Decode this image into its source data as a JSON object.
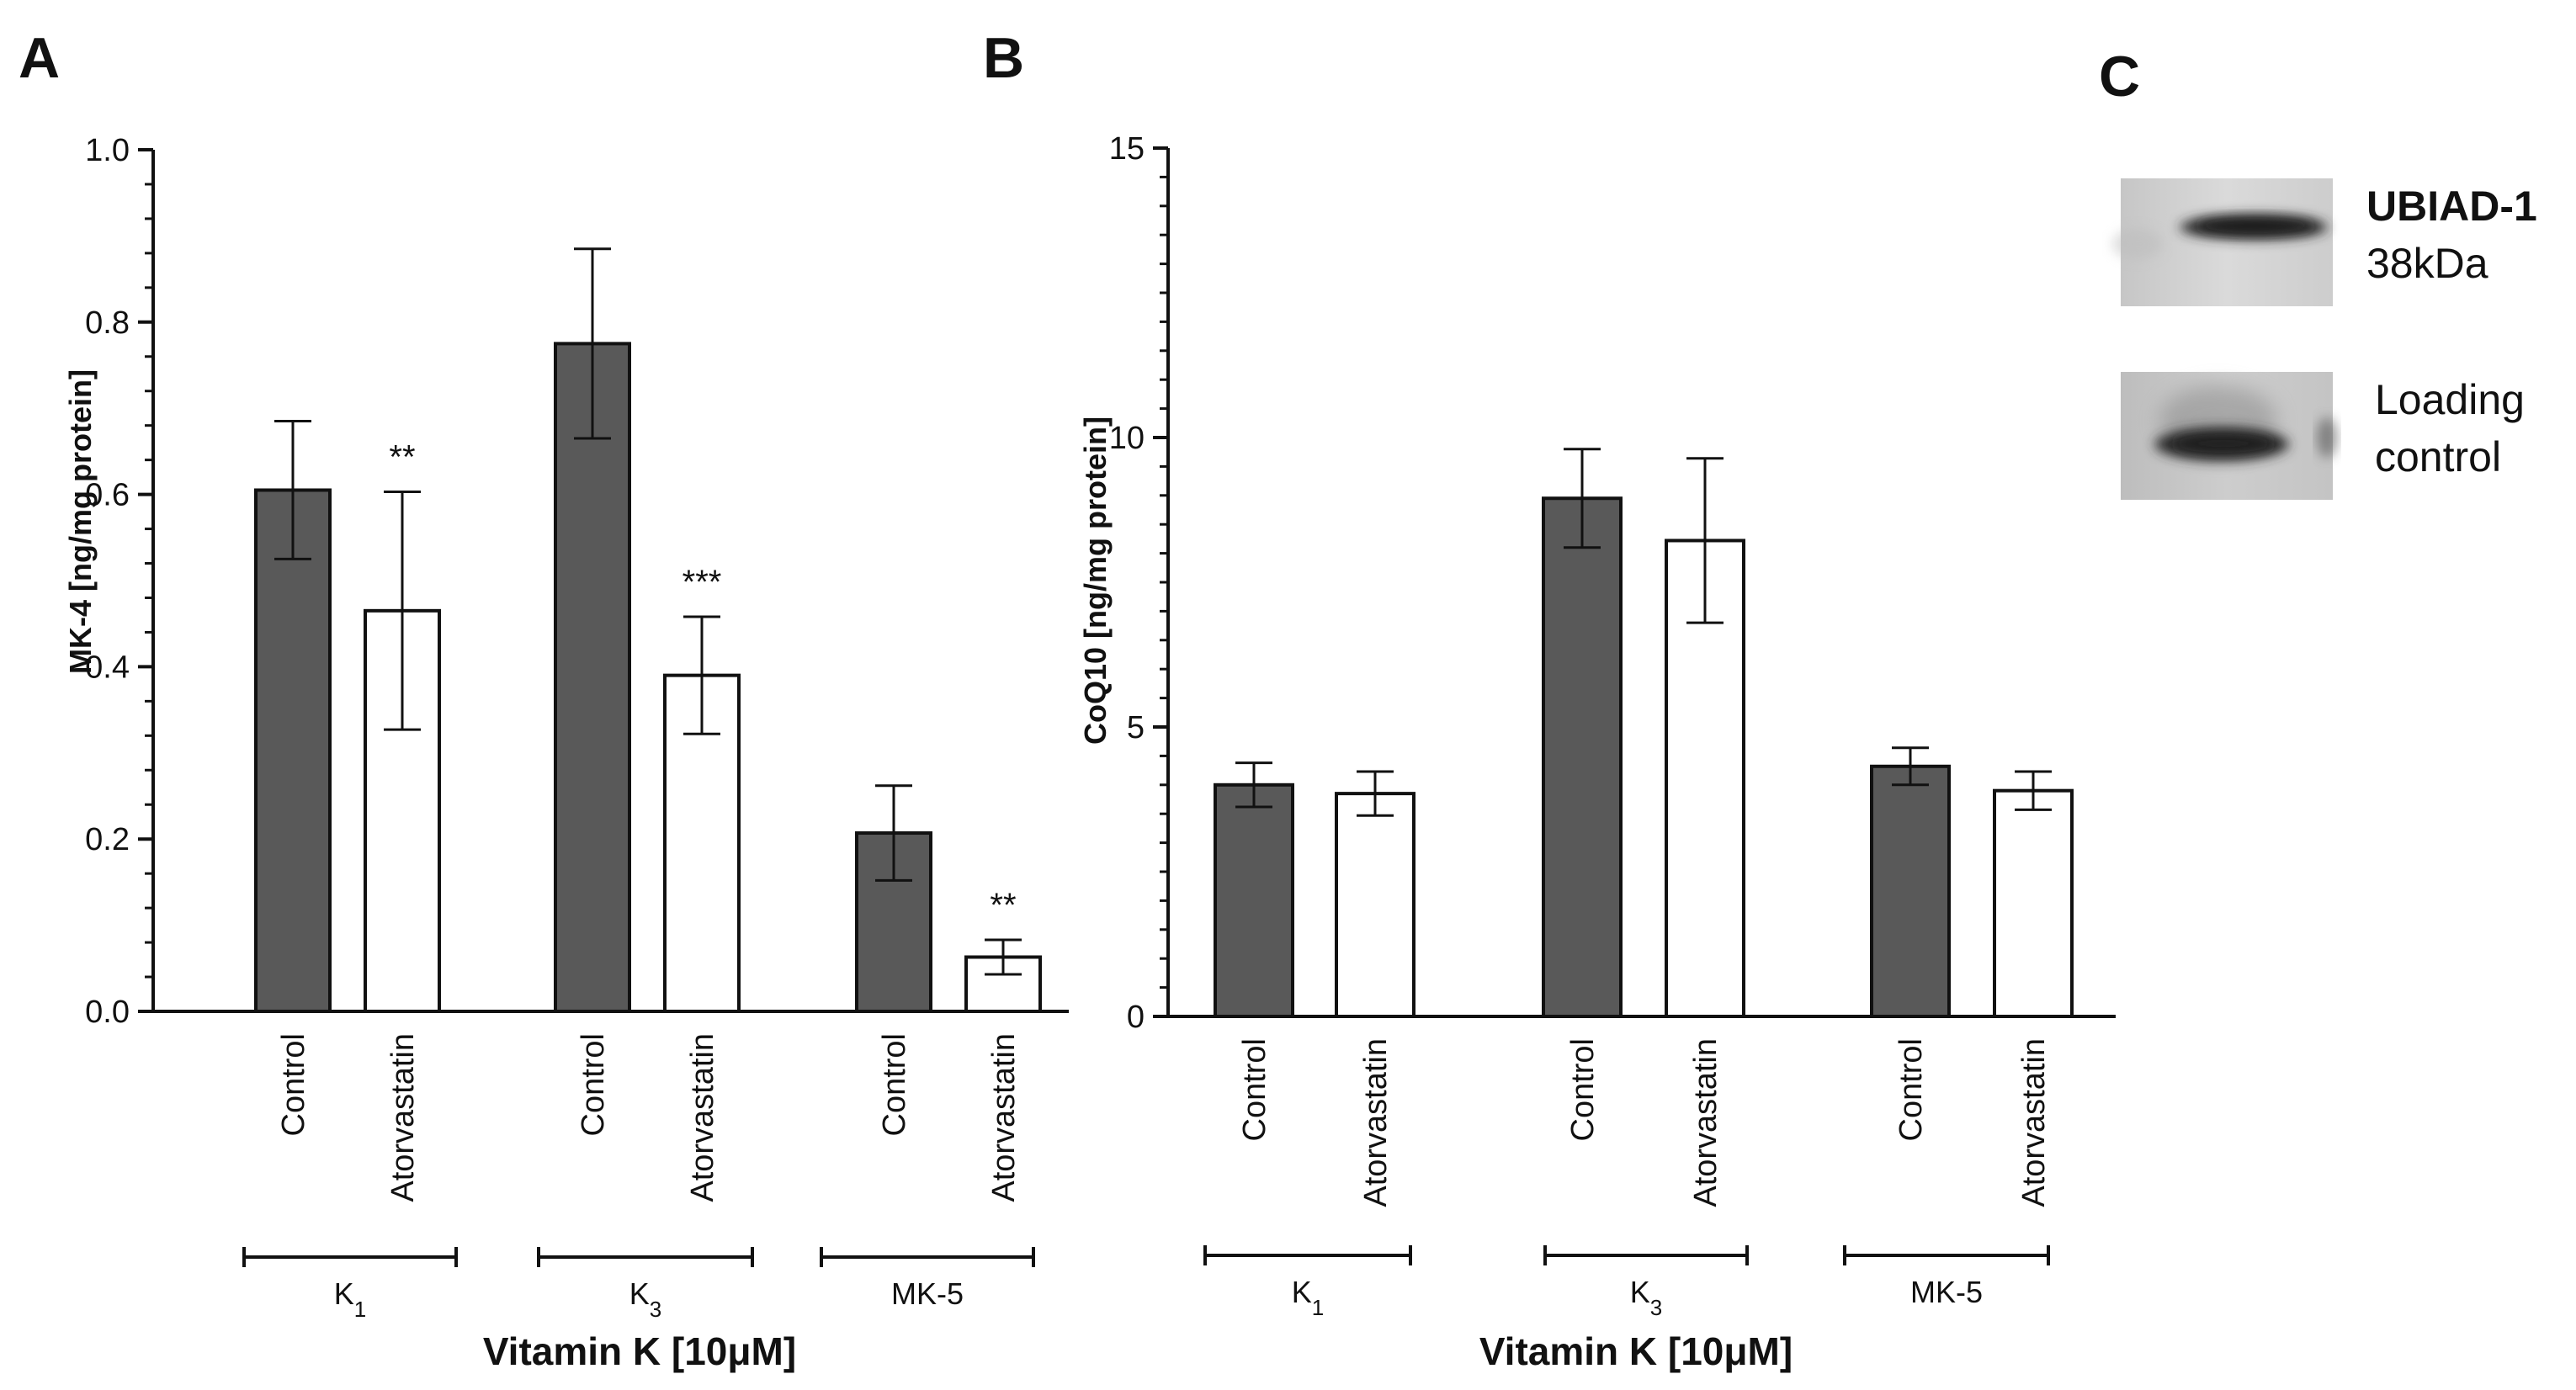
{
  "colors": {
    "control": "#595959",
    "atorvastatin": "#ffffff",
    "stroke": "#111111"
  },
  "chart_data": [
    {
      "panel": "A",
      "type": "bar",
      "ylabel": "MK-4 [ng/mg protein]",
      "xlabel": "Vitamin K [10μM]",
      "ylim": [
        0,
        1.0
      ],
      "yticks": [
        0.0,
        0.2,
        0.4,
        0.6,
        0.8,
        1.0
      ],
      "ytick_labels": [
        "0.0",
        "0.2",
        "0.4",
        "0.6",
        "0.8",
        "1.0"
      ],
      "groups": [
        {
          "label": "K",
          "sub": "1"
        },
        {
          "label": "K",
          "sub": "3"
        },
        {
          "label": "MK-5",
          "sub": ""
        }
      ],
      "series": [
        {
          "name": "Control",
          "values": [
            0.605,
            0.775,
            0.207
          ],
          "errors": [
            0.08,
            0.11,
            0.055
          ],
          "sig": [
            "",
            "",
            ""
          ]
        },
        {
          "name": "Atorvastatin",
          "values": [
            0.465,
            0.39,
            0.063
          ],
          "errors": [
            0.138,
            0.068,
            0.02
          ],
          "sig": [
            "**",
            "***",
            "**"
          ]
        }
      ]
    },
    {
      "panel": "B",
      "type": "bar",
      "ylabel": "CoQ10 [ng/mg protein]",
      "xlabel": "Vitamin K [10μM]",
      "ylim": [
        0,
        15
      ],
      "yticks": [
        0,
        5,
        10,
        15
      ],
      "ytick_labels": [
        "0",
        "5",
        "10",
        "15"
      ],
      "groups": [
        {
          "label": "K",
          "sub": "1"
        },
        {
          "label": "K",
          "sub": "3"
        },
        {
          "label": "MK-5",
          "sub": ""
        }
      ],
      "series": [
        {
          "name": "Control",
          "values": [
            4.0,
            8.95,
            4.32
          ],
          "errors": [
            0.38,
            0.85,
            0.32
          ],
          "sig": [
            "",
            "",
            ""
          ]
        },
        {
          "name": "Atorvastatin",
          "values": [
            3.85,
            8.22,
            3.9
          ],
          "errors": [
            0.38,
            1.42,
            0.33
          ],
          "sig": [
            "",
            "",
            ""
          ]
        }
      ]
    }
  ],
  "panel_c": {
    "letter": "C",
    "blot1_name": "UBIAD-1",
    "blot1_size": "38kDa",
    "blot2_line1": "Loading",
    "blot2_line2": "control"
  }
}
